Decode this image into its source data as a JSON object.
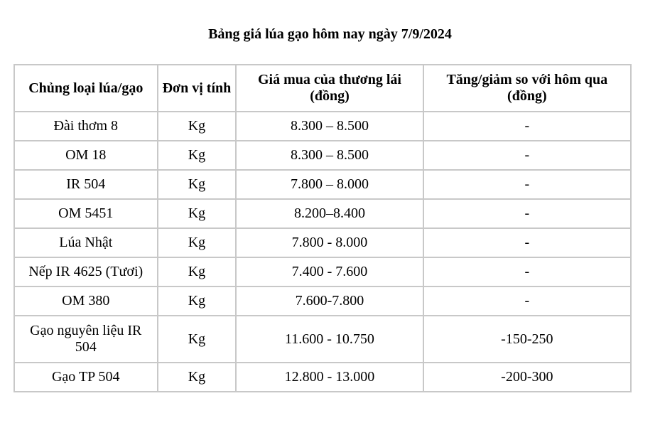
{
  "title": "Bảng giá lúa gạo hôm nay ngày 7/9/2024",
  "headers": [
    "Chủng loại lúa/gạo",
    "Đơn vị tính",
    "Giá mua của thương lái (đồng)",
    "Tăng/giảm so với hôm qua (đồng)"
  ],
  "rows": [
    {
      "type": "Đài thơm 8",
      "unit": "Kg",
      "price": "8.300 – 8.500",
      "change": "-"
    },
    {
      "type": "OM 18",
      "unit": "Kg",
      "price": "8.300 – 8.500",
      "change": "-"
    },
    {
      "type": "IR 504",
      "unit": "Kg",
      "price": "7.800 – 8.000",
      "change": "-"
    },
    {
      "type": "OM 5451",
      "unit": "Kg",
      "price": "8.200–8.400",
      "change": "-"
    },
    {
      "type": "Lúa Nhật",
      "unit": "Kg",
      "price": "7.800 - 8.000",
      "change": "-"
    },
    {
      "type": "Nếp IR 4625 (Tươi)",
      "unit": "Kg",
      "price": "7.400 - 7.600",
      "change": "-"
    },
    {
      "type": "OM 380",
      "unit": "Kg",
      "price": "7.600-7.800",
      "change": "-"
    },
    {
      "type": "Gạo nguyên liệu IR 504",
      "unit": "Kg",
      "price": "11.600 - 10.750",
      "change": "-150-250"
    },
    {
      "type": "Gạo TP 504",
      "unit": "Kg",
      "price": "12.800 - 13.000",
      "change": "-200-300"
    }
  ]
}
